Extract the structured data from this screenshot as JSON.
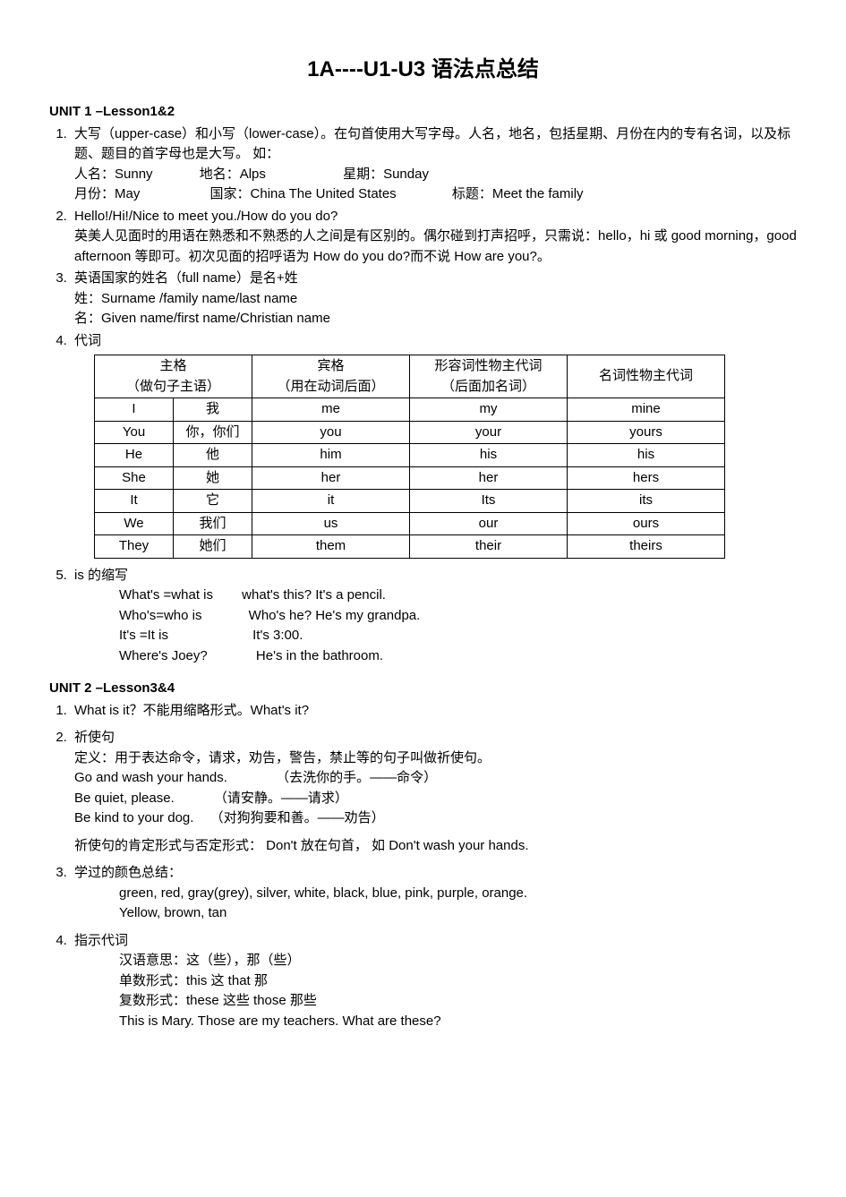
{
  "title": "1A----U1-U3 语法点总结",
  "unit1": {
    "header": "UNIT 1 –Lesson1&2",
    "item1": {
      "line1": "大写（upper-case）和小写（lower-case）。在句首使用大写字母。人名，地名，包括星期、月份在内的专有名词，以及标题、题目的首字母也是大写。 如：",
      "line2a": "人名：Sunny",
      "line2b": "地名：Alps",
      "line2c": "星期：Sunday",
      "line3a": "月份：May",
      "line3b": "国家：China   The United States",
      "line3c": "标题：Meet the family"
    },
    "item2": {
      "line1": "Hello!/Hi!/Nice to meet you./How do you do?",
      "line2": "英美人见面时的用语在熟悉和不熟悉的人之间是有区别的。偶尔碰到打声招呼，只需说：hello，hi 或 good morning，good afternoon 等即可。初次见面的招呼语为 How do you do?而不说 How are you?。"
    },
    "item3": {
      "line1": "英语国家的姓名（full name）是名+姓",
      "line2": "姓：Surname /family name/last name",
      "line3": "名：Given name/first name/Christian name"
    },
    "item4": {
      "label": "代词",
      "headers": {
        "h1a": "主格",
        "h1b": "（做句子主语）",
        "h2a": "宾格",
        "h2b": "（用在动词后面）",
        "h3a": "形容词性物主代词",
        "h3b": "（后面加名词）",
        "h4a": "名词性物主代词"
      },
      "rows": [
        {
          "subj_en": "I",
          "subj_cn": "我",
          "obj": "me",
          "adj": "my",
          "noun": "mine"
        },
        {
          "subj_en": "You",
          "subj_cn": "你，你们",
          "obj": "you",
          "adj": "your",
          "noun": "yours"
        },
        {
          "subj_en": "He",
          "subj_cn": "他",
          "obj": "him",
          "adj": "his",
          "noun": "his"
        },
        {
          "subj_en": "She",
          "subj_cn": "她",
          "obj": "her",
          "adj": "her",
          "noun": "hers"
        },
        {
          "subj_en": "It",
          "subj_cn": "它",
          "obj": "it",
          "adj": "Its",
          "noun": "its"
        },
        {
          "subj_en": "We",
          "subj_cn": "我们",
          "obj": "us",
          "adj": "our",
          "noun": "ours"
        },
        {
          "subj_en": "They",
          "subj_cn": "她们",
          "obj": "them",
          "adj": "their",
          "noun": "theirs"
        }
      ]
    },
    "item5": {
      "label": "is 的缩写",
      "r1a": "What's =what is",
      "r1b": "what's this? It's a pencil.",
      "r2a": "Who's=who is",
      "r2b": "Who's he? He's my grandpa.",
      "r3a": "It's =It is",
      "r3b": "It's 3:00.",
      "r4a": "Where's Joey?",
      "r4b": "He's in the bathroom."
    }
  },
  "unit2": {
    "header": "UNIT 2 –Lesson3&4",
    "item1": "What is it？不能用缩略形式。What's it?",
    "item2": {
      "label": "祈使句",
      "def": "定义：用于表达命令，请求，劝告，警告，禁止等的句子叫做祈使句。",
      "ex1a": "Go and wash your hands.",
      "ex1b": "（去洗你的手。——命令）",
      "ex2a": "Be quiet, please.",
      "ex2b": "（请安静。——请求）",
      "ex3a": "Be kind to your dog.",
      "ex3b": "（对狗狗要和善。——劝告）",
      "note": "祈使句的肯定形式与否定形式： Don't 放在句首， 如 Don't   wash your hands."
    },
    "item3": {
      "label": "学过的颜色总结：",
      "line1": "green, red, gray(grey), silver, white, black, blue, pink, purple, orange.",
      "line2": "Yellow, brown, tan"
    },
    "item4": {
      "label": "指示代词",
      "l1": "汉语意思：这（些），那（些）",
      "l2": "单数形式：this   这          that    那",
      "l3": "复数形式：these  这些     those  那些",
      "l4": "This is Mary. Those are my teachers. What are these?"
    }
  }
}
